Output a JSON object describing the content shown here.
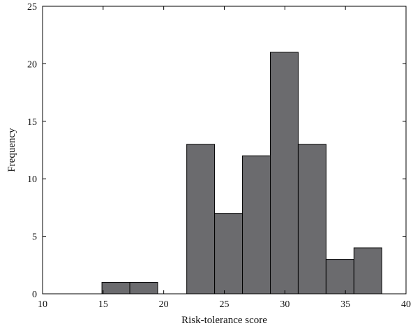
{
  "chart_data": {
    "type": "bar",
    "title": "",
    "xlabel": "Risk-tolerance score",
    "ylabel": "Frequency",
    "xlim": [
      10,
      40
    ],
    "ylim": [
      0,
      25
    ],
    "xticks": [
      10,
      15,
      20,
      25,
      30,
      35,
      40
    ],
    "yticks": [
      0,
      5,
      10,
      15,
      20,
      25
    ],
    "grid": false,
    "bar_color": "#6b6b6e",
    "bins": [
      {
        "x0": 14.9,
        "x1": 17.2,
        "value": 1
      },
      {
        "x0": 17.2,
        "x1": 19.5,
        "value": 1
      },
      {
        "x0": 19.5,
        "x1": 21.9,
        "value": 0
      },
      {
        "x0": 21.9,
        "x1": 24.2,
        "value": 13
      },
      {
        "x0": 24.2,
        "x1": 26.5,
        "value": 7
      },
      {
        "x0": 26.5,
        "x1": 28.8,
        "value": 12
      },
      {
        "x0": 28.8,
        "x1": 31.1,
        "value": 21
      },
      {
        "x0": 31.1,
        "x1": 33.4,
        "value": 13
      },
      {
        "x0": 33.4,
        "x1": 35.7,
        "value": 3
      },
      {
        "x0": 35.7,
        "x1": 38.0,
        "value": 4
      }
    ]
  }
}
